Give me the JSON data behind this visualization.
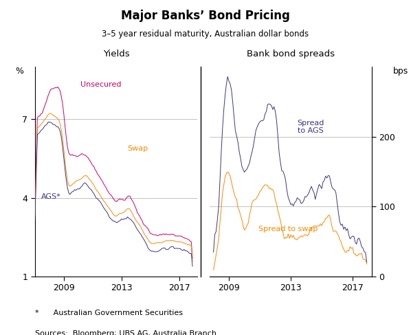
{
  "title": "Major Banks’ Bond Pricing",
  "subtitle": "3–5 year residual maturity, Australian dollar bonds",
  "left_panel_title": "Yields",
  "right_panel_title": "Bank bond spreads",
  "left_ylabel": "%",
  "right_ylabel": "bps",
  "footnote1": "*      Australian Government Securities",
  "footnote2": "Sources:  Bloomberg; UBS AG, Australia Branch",
  "colors": {
    "unsecured": "#CC0066",
    "swap": "#FF8800",
    "ags": "#3D3580",
    "spread_ags": "#3D3580",
    "spread_swap": "#FF8800"
  },
  "left_ylim": [
    1,
    9
  ],
  "left_yticks": [
    1,
    4,
    7
  ],
  "right_ylim": [
    0,
    300
  ],
  "right_yticks": [
    0,
    100,
    200
  ],
  "grid_color": "#AAAAAA",
  "line_width": 0.7,
  "left_xlim": [
    2007.0,
    2018.25
  ],
  "right_xlim": [
    2007.75,
    2018.25
  ],
  "xticks": [
    2009,
    2013,
    2017
  ]
}
